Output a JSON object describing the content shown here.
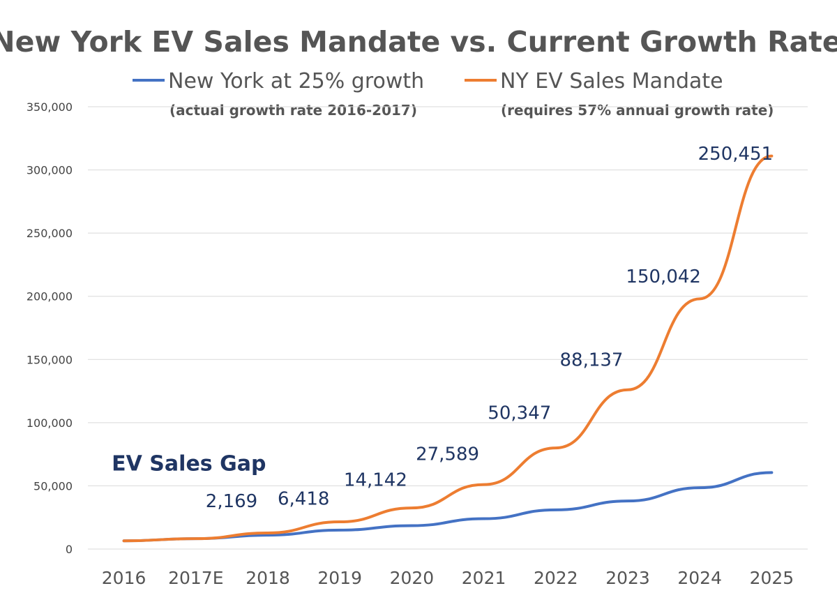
{
  "chart_data": {
    "type": "line",
    "title": "New York EV Sales Mandate vs. Current Growth Rate",
    "categories": [
      "2016",
      "2017E",
      "2018",
      "2019",
      "2020",
      "2021",
      "2022",
      "2023",
      "2024",
      "2025"
    ],
    "ylim": [
      0,
      350000
    ],
    "yticks": [
      0,
      50000,
      100000,
      150000,
      200000,
      250000,
      300000,
      350000
    ],
    "ytick_labels": [
      "0",
      "50,000",
      "100,000",
      "150,000",
      "200,000",
      "250,000",
      "300,000",
      "350,000"
    ],
    "grid": true,
    "legend_position": "top",
    "series": [
      {
        "name": "New York at 25% growth",
        "subtitle": "(actual growth rate 2016-2017)",
        "color": "#4472c4",
        "values": [
          6500,
          8200,
          11000,
          15000,
          18500,
          24000,
          31000,
          38000,
          48500,
          60500
        ]
      },
      {
        "name": "NY EV Sales Mandate",
        "subtitle": "(requires 57% annual growth rate)",
        "color": "#ed7d31",
        "values": [
          6500,
          8200,
          12700,
          21500,
          32500,
          51000,
          80000,
          126000,
          198000,
          311000
        ]
      }
    ],
    "data_labels": [
      {
        "text": "2,169",
        "category": "2018",
        "y": 33000
      },
      {
        "text": "6,418",
        "category": "2019",
        "y": 35000
      },
      {
        "text": "14,142",
        "category": "2020",
        "y": 50000
      },
      {
        "text": "27,589",
        "category": "2021",
        "y": 70500
      },
      {
        "text": "50,347",
        "category": "2022",
        "y": 103000
      },
      {
        "text": "88,137",
        "category": "2023",
        "y": 145000
      },
      {
        "text": "150,042",
        "category": "2024",
        "y": 211000
      },
      {
        "text": "250,451",
        "category": "2025",
        "y": 308000
      }
    ],
    "annotation": {
      "text": "EV Sales Gap",
      "category": "2017E",
      "y": 62000
    }
  }
}
